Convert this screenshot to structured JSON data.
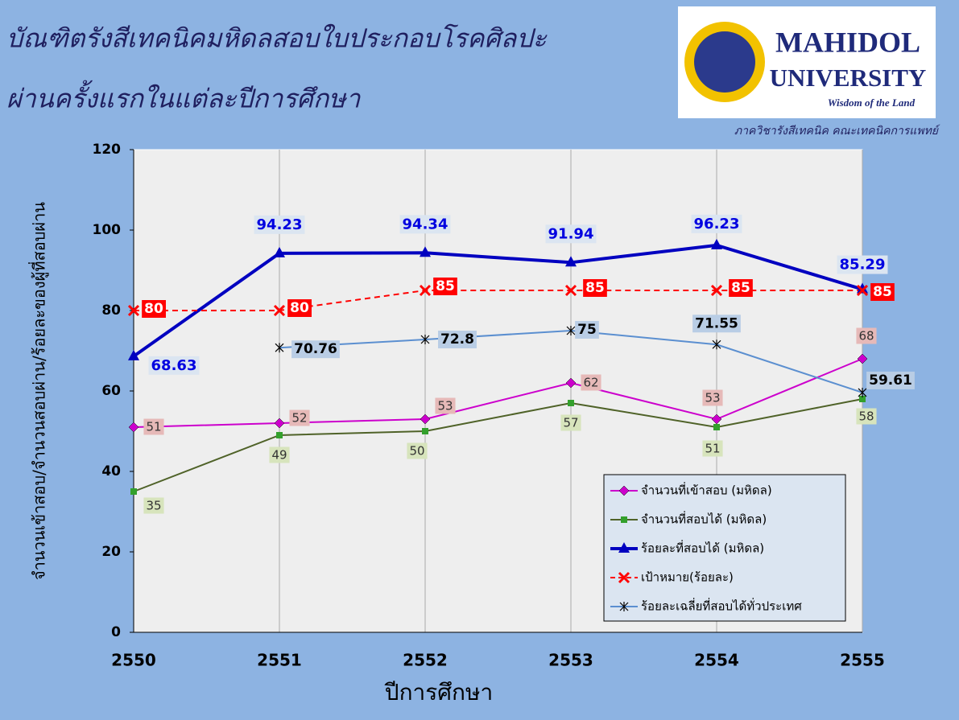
{
  "header": {
    "title_line1": "บัณฑิตรังสีเทคนิคมหิดลสอบใบประกอบโรคศิลปะ",
    "title_line2": "ผ่านครั้งแรกในแต่ละปีการศึกษา",
    "logo_name": "MAHIDOL",
    "logo_name2": "UNIVERSITY",
    "logo_motto": "Wisdom of the Land",
    "department": "ภาควิชารังสีเทคนิค คณะเทคนิคการแพทย์"
  },
  "chart_data": {
    "type": "line",
    "y_label": "จำนวนเข้าสอบ/จำนวนสอบผ่าน/ร้อยละของผู้ที่สอบผ่าน",
    "x_label": "ปีการศึกษา",
    "categories": [
      "2550",
      "2551",
      "2552",
      "2553",
      "2554",
      "2555"
    ],
    "ylim": [
      0,
      120
    ],
    "yticks": [
      0,
      20,
      40,
      60,
      80,
      100,
      120
    ],
    "grid": "vertical",
    "legend": "lower-right",
    "series": [
      {
        "name": "จำนวนที่เข้าสอบ (มหิดล)",
        "color": "#cc00cc",
        "marker": "diamond",
        "values": [
          51,
          52,
          53,
          62,
          53,
          68
        ]
      },
      {
        "name": "จำนวนที่สอบได้ (มหิดล)",
        "color": "#4f6228",
        "marker": "square",
        "values": [
          35,
          49,
          50,
          57,
          51,
          58
        ]
      },
      {
        "name": "ร้อยละที่สอบได้ (มหิดล)",
        "color": "#0000c0",
        "marker": "triangle",
        "values": [
          68.63,
          94.23,
          94.34,
          91.94,
          96.23,
          85.29
        ]
      },
      {
        "name": "เป้าหมาย(ร้อยละ)",
        "color": "#ff0000",
        "marker": "x",
        "dashed": true,
        "values": [
          80,
          80,
          85,
          85,
          85,
          85
        ]
      },
      {
        "name": "ร้อยละเฉลี่ยที่สอบได้ทั่วประเทศ",
        "color": "#5b8fd0",
        "marker": "star",
        "values": [
          null,
          70.76,
          72.8,
          75,
          71.55,
          59.61
        ]
      }
    ]
  }
}
